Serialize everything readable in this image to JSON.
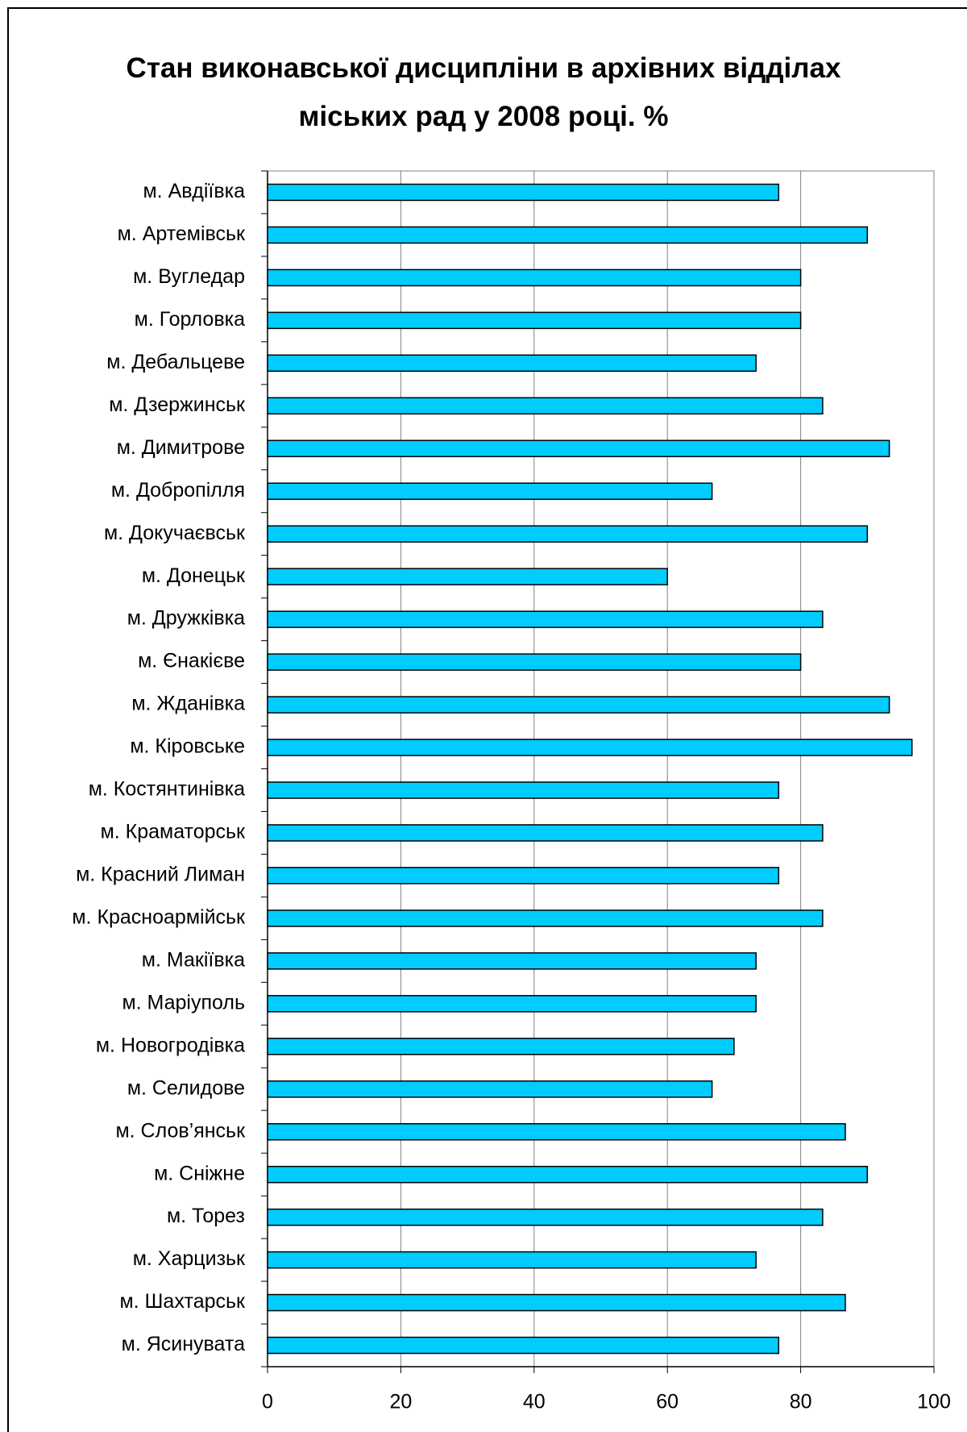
{
  "chart_data": {
    "type": "barh",
    "title": "Стан виконавської дисципліни в архівних відділах міських рад у 2008 році. %",
    "categories": [
      "м. Авдіївка",
      "м. Артемівськ",
      "м. Вугледар",
      "м. Горловка",
      "м. Дебальцеве",
      "м. Дзержинськ",
      "м. Димитрове",
      "м. Добропілля",
      "м. Докучаєвськ",
      "м. Донецьк",
      "м. Дружківка",
      "м. Єнакієве",
      "м. Жданівка",
      "м. Кіровське",
      "м. Костянтинівка",
      "м. Краматорськ",
      "м. Красний Лиман",
      "м. Красноармійськ",
      "м. Макіївка",
      "м. Маріуполь",
      "м. Новогродівка",
      "м. Селидове",
      "м. Слов’янськ",
      "м. Сніжне",
      "м. Торез",
      "м. Харцизьк",
      "м. Шахтарськ",
      "м. Ясинувата"
    ],
    "values": [
      76.7,
      90,
      80,
      80,
      73.3,
      83.3,
      93.3,
      66.7,
      90,
      60,
      83.3,
      80,
      93.3,
      96.7,
      76.7,
      83.3,
      76.7,
      83.3,
      73.3,
      73.3,
      70,
      66.7,
      86.7,
      90,
      83.3,
      73.3,
      86.7,
      76.7
    ],
    "color": "#00ccff",
    "xlim": [
      0,
      100
    ],
    "xticks": [
      0,
      20,
      40,
      60,
      80,
      100
    ],
    "grid": true
  }
}
